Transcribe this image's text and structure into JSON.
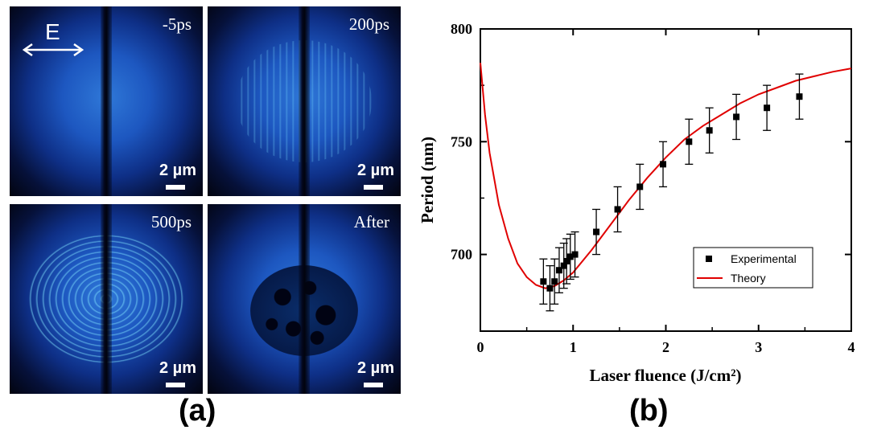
{
  "panel_a": {
    "label": "(a)",
    "efield_label": "E",
    "scale_text": "2 µm",
    "images": [
      {
        "time": "-5ps"
      },
      {
        "time": "200ps"
      },
      {
        "time": "500ps"
      },
      {
        "time": "After"
      }
    ]
  },
  "panel_b": {
    "label": "(b)"
  },
  "chart_data": {
    "type": "scatter",
    "xlabel": "Laser fluence (J/cm²)",
    "ylabel": "Period (nm)",
    "xlim": [
      0,
      4
    ],
    "ylim": [
      666,
      800
    ],
    "x_ticks": [
      0,
      1,
      2,
      3,
      4
    ],
    "y_ticks": [
      700,
      750,
      800
    ],
    "grid": false,
    "legend_position": "bottom-right",
    "series": [
      {
        "name": "Experimental",
        "color": "#000000",
        "points": [
          {
            "x": 0.68,
            "y": 688,
            "err": 10
          },
          {
            "x": 0.75,
            "y": 685,
            "err": 10
          },
          {
            "x": 0.8,
            "y": 688,
            "err": 10
          },
          {
            "x": 0.85,
            "y": 693,
            "err": 10
          },
          {
            "x": 0.9,
            "y": 695,
            "err": 10
          },
          {
            "x": 0.93,
            "y": 697,
            "err": 10
          },
          {
            "x": 0.97,
            "y": 699,
            "err": 10
          },
          {
            "x": 1.02,
            "y": 700,
            "err": 10
          },
          {
            "x": 1.25,
            "y": 710,
            "err": 10
          },
          {
            "x": 1.48,
            "y": 720,
            "err": 10
          },
          {
            "x": 1.72,
            "y": 730,
            "err": 10
          },
          {
            "x": 1.97,
            "y": 740,
            "err": 10
          },
          {
            "x": 2.25,
            "y": 750,
            "err": 10
          },
          {
            "x": 2.47,
            "y": 755,
            "err": 10
          },
          {
            "x": 2.76,
            "y": 761,
            "err": 10
          },
          {
            "x": 3.09,
            "y": 765,
            "err": 10
          },
          {
            "x": 3.44,
            "y": 770,
            "err": 10
          }
        ]
      },
      {
        "name": "Theory",
        "color": "#e00000",
        "points": [
          {
            "x": 0.0,
            "y": 785
          },
          {
            "x": 0.05,
            "y": 762
          },
          {
            "x": 0.1,
            "y": 745
          },
          {
            "x": 0.2,
            "y": 722
          },
          {
            "x": 0.3,
            "y": 707
          },
          {
            "x": 0.4,
            "y": 696
          },
          {
            "x": 0.5,
            "y": 690
          },
          {
            "x": 0.6,
            "y": 686.5
          },
          {
            "x": 0.7,
            "y": 685
          },
          {
            "x": 0.8,
            "y": 686
          },
          {
            "x": 0.9,
            "y": 688.5
          },
          {
            "x": 1.0,
            "y": 692
          },
          {
            "x": 1.2,
            "y": 702
          },
          {
            "x": 1.4,
            "y": 713
          },
          {
            "x": 1.6,
            "y": 724
          },
          {
            "x": 1.8,
            "y": 734
          },
          {
            "x": 2.0,
            "y": 743
          },
          {
            "x": 2.2,
            "y": 751
          },
          {
            "x": 2.4,
            "y": 757
          },
          {
            "x": 2.6,
            "y": 762
          },
          {
            "x": 2.8,
            "y": 767
          },
          {
            "x": 3.0,
            "y": 771
          },
          {
            "x": 3.2,
            "y": 774
          },
          {
            "x": 3.4,
            "y": 777
          },
          {
            "x": 3.6,
            "y": 779
          },
          {
            "x": 3.8,
            "y": 781
          },
          {
            "x": 4.0,
            "y": 782.5
          }
        ]
      }
    ]
  }
}
